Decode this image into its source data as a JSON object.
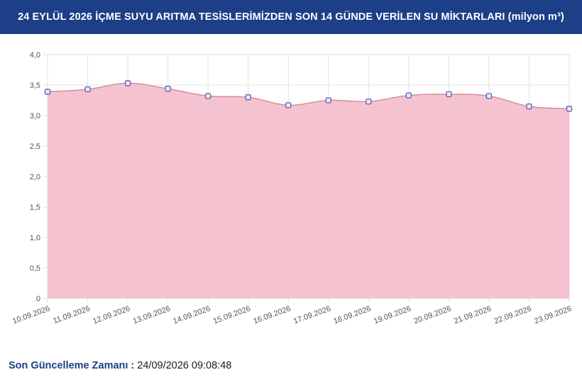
{
  "header": {
    "title": "24 EYLÜL 2026 İÇME SUYU ARITMA TESİSLERİMİZDEN SON 14 GÜNDE VERİLEN SU MİKTARLARI (milyon m³)"
  },
  "chart_data": {
    "type": "area",
    "title": "24 EYLÜL 2026 İÇME SUYU ARITMA TESİSLERİMİZDEN SON 14 GÜNDE VERİLEN SU MİKTARLARI (milyon m³)",
    "xlabel": "",
    "ylabel": "",
    "categories": [
      "10.09.2026",
      "11.09.2026",
      "12.09.2026",
      "13.09.2026",
      "14.09.2026",
      "15.09.2026",
      "16.09.2026",
      "17.09.2026",
      "18.09.2026",
      "19.09.2026",
      "20.09.2026",
      "21.09.2026",
      "22.09.2026",
      "23.09.2026"
    ],
    "values": [
      3.39,
      3.43,
      3.53,
      3.44,
      3.32,
      3.3,
      3.17,
      3.25,
      3.23,
      3.33,
      3.35,
      3.32,
      3.15,
      3.11
    ],
    "ylim": [
      0,
      4
    ],
    "yticks": [
      "0",
      "0,5",
      "1,0",
      "1,5",
      "2,0",
      "2,5",
      "3,0",
      "3,5",
      "4,0"
    ],
    "grid": true,
    "legend": "none",
    "colors": {
      "fill": "#f5c3cf",
      "line": "#d98ba0",
      "marker": "#5a5fb8"
    }
  },
  "footer": {
    "label": "Son Güncelleme Zamanı :",
    "value": "24/09/2026 09:08:48"
  }
}
